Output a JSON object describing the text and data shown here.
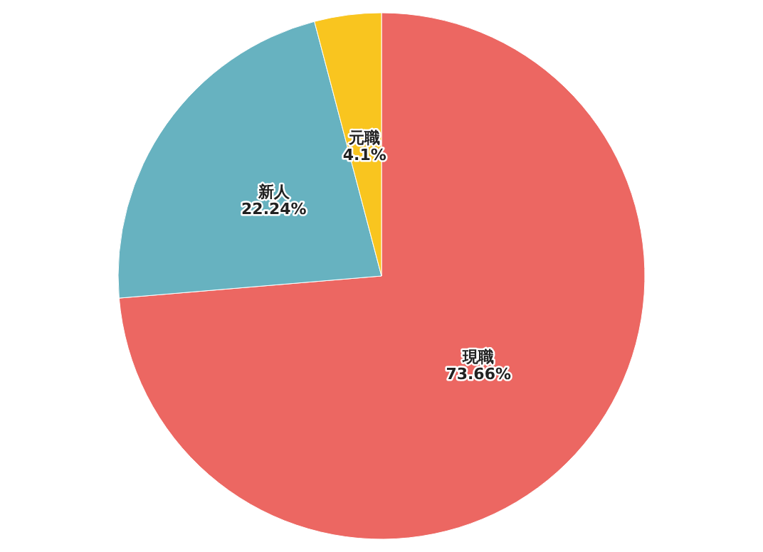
{
  "chart_data": {
    "type": "pie",
    "categories": [
      "現職",
      "新人",
      "元職"
    ],
    "values": [
      73.66,
      22.24,
      4.1
    ],
    "colors": [
      "#ec6762",
      "#67b2c0",
      "#f9c51f"
    ],
    "value_labels": [
      "73.66%",
      "22.24%",
      "4.1%"
    ],
    "legend": false
  }
}
